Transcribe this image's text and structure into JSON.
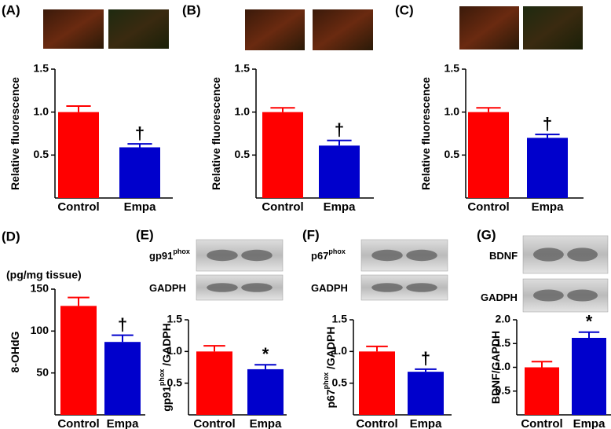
{
  "chart_data": [
    {
      "type": "bar",
      "panel": "(A)",
      "ylabel": "Relative fluorescence",
      "categories": [
        "Control",
        "Empa"
      ],
      "values": [
        1.0,
        0.59
      ],
      "errors": [
        0.07,
        0.04
      ],
      "colors": [
        "#ff0000",
        "#0000cc"
      ],
      "annotations": [
        null,
        "†"
      ],
      "ylim": [
        0,
        1.5
      ],
      "yticks": [
        0.5,
        {
          "value": 1,
          "label": "1.0"
        },
        1.5
      ]
    },
    {
      "type": "bar",
      "panel": "(B)",
      "ylabel": "Relative fluorescence",
      "categories": [
        "Control",
        "Empa"
      ],
      "values": [
        1.0,
        0.61
      ],
      "errors": [
        0.05,
        0.06
      ],
      "colors": [
        "#ff0000",
        "#0000cc"
      ],
      "annotations": [
        null,
        "†"
      ],
      "ylim": [
        0,
        1.5
      ],
      "yticks": [
        0.5,
        {
          "value": 1,
          "label": "1.0"
        },
        1.5
      ]
    },
    {
      "type": "bar",
      "panel": "(C)",
      "ylabel": "Relative fluorescence",
      "categories": [
        "Control",
        "Empa"
      ],
      "values": [
        1.0,
        0.7
      ],
      "errors": [
        0.05,
        0.04
      ],
      "colors": [
        "#ff0000",
        "#0000cc"
      ],
      "annotations": [
        null,
        "†"
      ],
      "ylim": [
        0,
        1.5
      ],
      "yticks": [
        0.5,
        {
          "value": 1,
          "label": "1.0"
        },
        1.5
      ]
    },
    {
      "type": "bar",
      "panel": "(D)",
      "unit": "(pg/mg tissue)",
      "ylabel": "8-OHdG",
      "categories": [
        "Control",
        "Empa"
      ],
      "values": [
        130,
        87
      ],
      "errors": [
        10,
        8
      ],
      "colors": [
        "#ff0000",
        "#0000cc"
      ],
      "annotations": [
        null,
        "†"
      ],
      "ylim": [
        0,
        150
      ],
      "yticks": [
        50,
        100,
        150
      ]
    },
    {
      "type": "bar",
      "panel": "(E)",
      "ylabel": "gp91",
      "ylabel_sup": "phox",
      "ylabel_rest": " /GADPH",
      "blot_labels": [
        {
          "main": "gp91",
          "sup": "phox"
        },
        {
          "main": "GADPH"
        }
      ],
      "categories": [
        "Control",
        "Empa"
      ],
      "values": [
        1.0,
        0.72
      ],
      "errors": [
        0.09,
        0.07
      ],
      "colors": [
        "#ff0000",
        "#0000cc"
      ],
      "annotations": [
        null,
        "*"
      ],
      "ylim": [
        0,
        1.5
      ],
      "yticks": [
        0.5,
        {
          "value": 1,
          "label": "1.0"
        },
        1.5
      ]
    },
    {
      "type": "bar",
      "panel": "(F)",
      "ylabel": "p67",
      "ylabel_sup": "phox",
      "ylabel_rest": " /GADPH",
      "blot_labels": [
        {
          "main": "p67",
          "sup": "phox"
        },
        {
          "main": "GADPH"
        }
      ],
      "categories": [
        "Control",
        "Empa"
      ],
      "values": [
        1.0,
        0.68
      ],
      "errors": [
        0.08,
        0.04
      ],
      "colors": [
        "#ff0000",
        "#0000cc"
      ],
      "annotations": [
        null,
        "†"
      ],
      "ylim": [
        0,
        1.5
      ],
      "yticks": [
        0.5,
        {
          "value": 1,
          "label": "1.0"
        },
        1.5
      ]
    },
    {
      "type": "bar",
      "panel": "(G)",
      "ylabel": "BDNF/GAPDH",
      "blot_labels": [
        {
          "main": "BDNF"
        },
        {
          "main": "GADPH"
        }
      ],
      "categories": [
        "Control",
        "Empa"
      ],
      "values": [
        1.0,
        1.62
      ],
      "errors": [
        0.12,
        0.12
      ],
      "colors": [
        "#ff0000",
        "#0000cc"
      ],
      "annotations": [
        null,
        "*"
      ],
      "ylim": [
        0,
        2.0
      ],
      "yticks": [
        0.5,
        {
          "value": 1,
          "label": "1.0"
        },
        1.5,
        {
          "value": 2,
          "label": "2.0"
        }
      ]
    }
  ]
}
